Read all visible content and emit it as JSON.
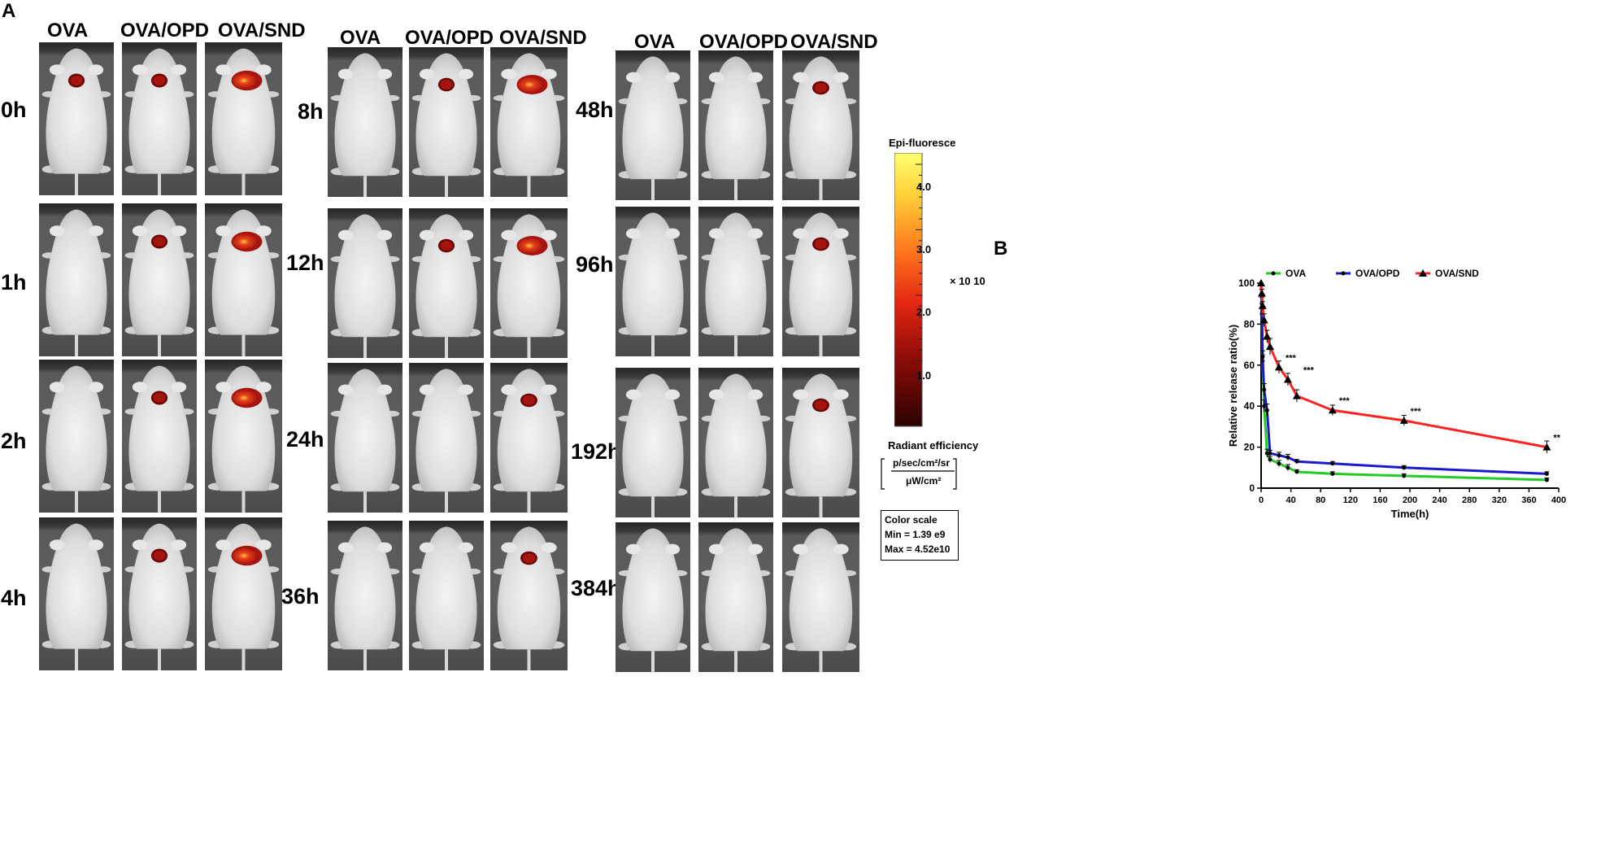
{
  "panel_a": {
    "letter": "A",
    "blocks": [
      {
        "columns": [
          "OVA",
          "OVA/OPD",
          "OVA/SND"
        ],
        "rows": [
          "0h",
          "1h",
          "2h",
          "4h"
        ]
      },
      {
        "columns": [
          "OVA",
          "OVA/OPD",
          "OVA/SND"
        ],
        "rows": [
          "8h",
          "12h",
          "24h",
          "36h"
        ]
      },
      {
        "columns": [
          "OVA",
          "OVA/OPD",
          "OVA/SND"
        ],
        "rows": [
          "48h",
          "96h",
          "192h",
          "384h"
        ]
      }
    ],
    "signal_intensity_by_block": [
      [
        [
          1,
          1,
          2
        ],
        [
          0,
          1,
          2
        ],
        [
          0,
          1,
          2
        ],
        [
          0,
          1,
          2
        ]
      ],
      [
        [
          0,
          1,
          2
        ],
        [
          0,
          1,
          2
        ],
        [
          0,
          0,
          1
        ],
        [
          0,
          0,
          1
        ]
      ],
      [
        [
          0,
          0,
          1
        ],
        [
          0,
          0,
          1
        ],
        [
          0,
          0,
          1
        ],
        [
          0,
          0,
          0
        ]
      ]
    ],
    "colors": {
      "hot": "#e8411c",
      "mid": "#a5140f",
      "dark": "#6a0808",
      "glow": "#ffcf3a"
    }
  },
  "colorbar": {
    "title": "Epi-fluoresce",
    "ticks": [
      "4.0",
      "3.0",
      "2.0",
      "1.0"
    ],
    "multiplier": "× 10 10",
    "unit_title": "Radiant efficiency",
    "unit_numerator": "p/sec/cm²/sr",
    "unit_denominator": "μW/cm²",
    "scale_box": {
      "title": "Color scale",
      "min": "Min = 1.39 e9",
      "max": "Max = 4.52e10"
    }
  },
  "panel_b": {
    "letter": "B"
  },
  "chart_data": {
    "type": "line",
    "title": "",
    "xlabel": "Time(h)",
    "ylabel": "Relative release ratio(%)",
    "xlim": [
      0,
      400
    ],
    "ylim": [
      0,
      100
    ],
    "xticks": [
      0,
      40,
      80,
      120,
      160,
      200,
      240,
      280,
      320,
      360,
      400
    ],
    "yticks": [
      0,
      20,
      40,
      60,
      80,
      100
    ],
    "legend": "top",
    "series": [
      {
        "name": "OVA",
        "color": "#22cc22",
        "marker": "circle",
        "x": [
          0,
          1,
          2,
          4,
          8,
          12,
          24,
          36,
          48,
          96,
          192,
          384
        ],
        "y": [
          100,
          85,
          62,
          40,
          17,
          14,
          12,
          10,
          8,
          7,
          6,
          4
        ],
        "err": [
          0,
          3,
          3,
          3,
          2,
          1.5,
          1.5,
          1.5,
          1,
          1,
          1,
          1
        ]
      },
      {
        "name": "OVA/OPD",
        "color": "#1a1acc",
        "marker": "circle",
        "x": [
          0,
          1,
          2,
          4,
          8,
          12,
          24,
          36,
          48,
          96,
          192,
          384
        ],
        "y": [
          100,
          90,
          64,
          48,
          38,
          17,
          16,
          15,
          13,
          12,
          10,
          7
        ],
        "err": [
          0,
          3,
          3,
          3,
          3,
          1.5,
          1.5,
          1.5,
          1,
          1,
          1,
          1
        ]
      },
      {
        "name": "OVA/SND",
        "color": "#ff2222",
        "marker": "triangle",
        "x": [
          0,
          1,
          2,
          4,
          8,
          12,
          24,
          36,
          48,
          96,
          192,
          384
        ],
        "y": [
          100,
          95,
          89,
          82,
          74,
          69,
          59,
          53,
          45,
          38,
          33,
          20
        ],
        "err": [
          0,
          2,
          2,
          3,
          3,
          4,
          3,
          3,
          3,
          2.5,
          2.5,
          3
        ]
      }
    ],
    "annotations": [
      {
        "x": 24,
        "y": 59,
        "text": "***"
      },
      {
        "x": 48,
        "y": 53,
        "text": "***"
      },
      {
        "x": 96,
        "y": 38,
        "text": "***"
      },
      {
        "x": 192,
        "y": 33,
        "text": "***"
      },
      {
        "x": 384,
        "y": 20,
        "text": "**"
      }
    ]
  }
}
